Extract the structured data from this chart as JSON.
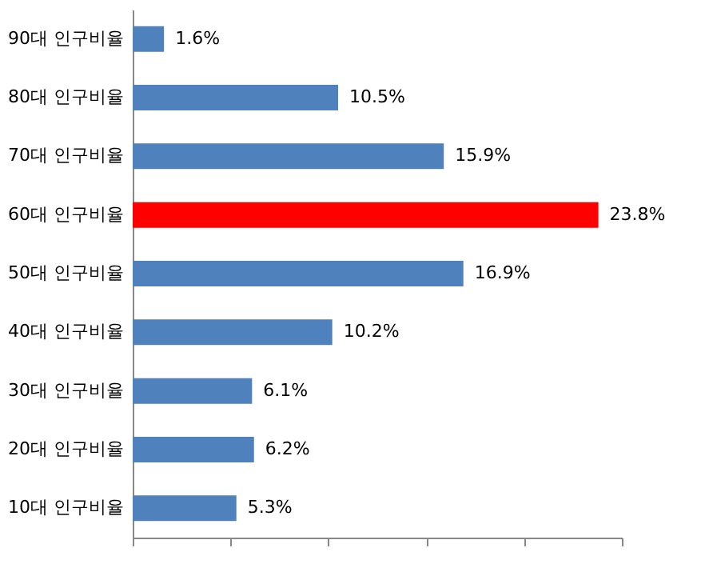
{
  "chart_data": {
    "type": "bar",
    "orientation": "horizontal",
    "categories": [
      "90대 인구비율",
      "80대 인구비율",
      "70대 인구비율",
      "60대 인구비율",
      "50대 인구비율",
      "40대 인구비율",
      "30대 인구비율",
      "20대 인구비율",
      "10대 인구비율"
    ],
    "values": [
      1.6,
      10.5,
      15.9,
      23.8,
      16.9,
      10.2,
      6.1,
      6.2,
      5.3
    ],
    "value_labels": [
      "1.6%",
      "10.5%",
      "15.9%",
      "23.8%",
      "16.9%",
      "10.2%",
      "6.1%",
      "6.2%",
      "5.3%"
    ],
    "colors": [
      "#4f81bd",
      "#4f81bd",
      "#4f81bd",
      "#ff0000",
      "#4f81bd",
      "#4f81bd",
      "#4f81bd",
      "#4f81bd",
      "#4f81bd"
    ],
    "xlim": [
      0,
      25
    ],
    "xticks": [
      {
        "value": 0,
        "label": null
      },
      {
        "value": 5,
        "label": null
      },
      {
        "value": 10,
        "label": null
      },
      {
        "value": 15,
        "label": null
      },
      {
        "value": 20,
        "label": null
      },
      {
        "value": 25,
        "label": null
      }
    ],
    "tick_labels": "y"
  }
}
